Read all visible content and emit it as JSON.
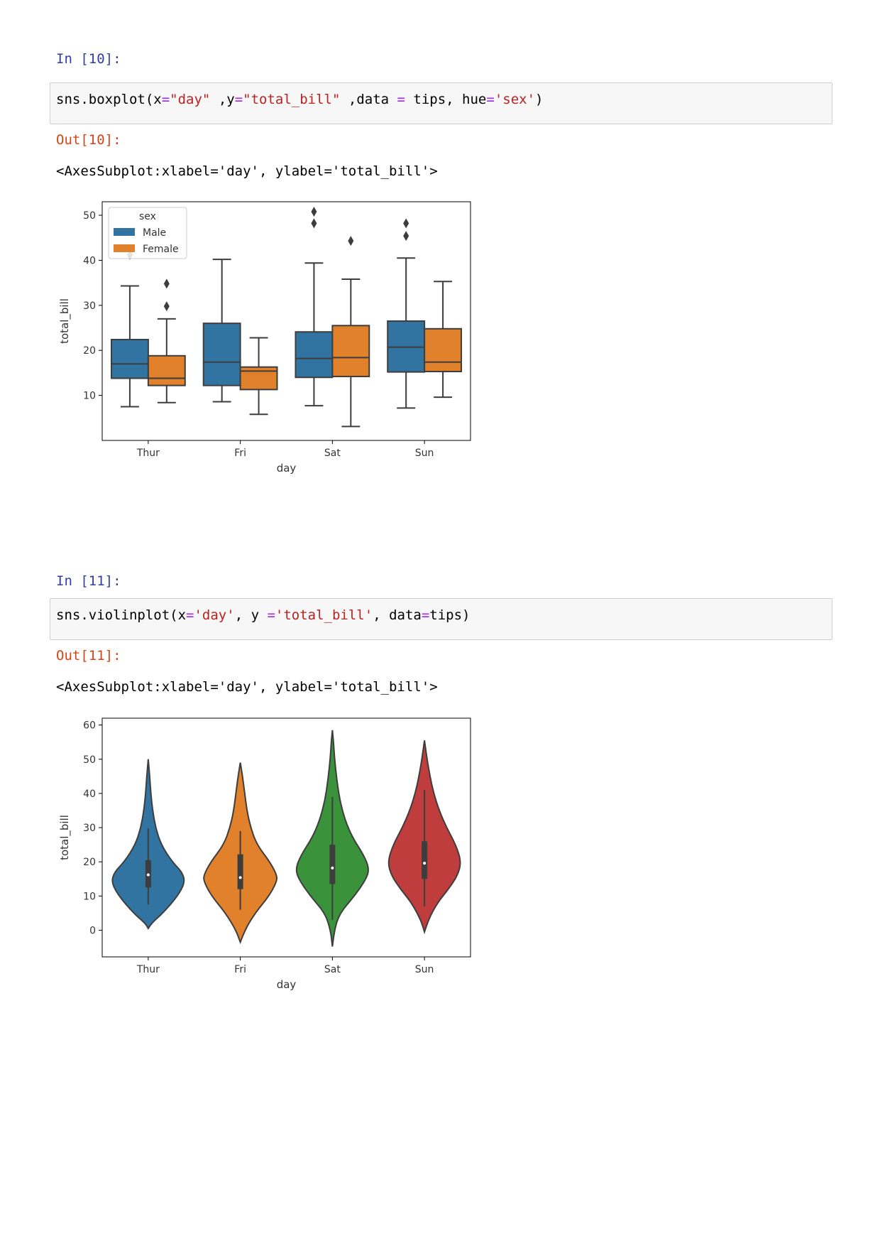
{
  "cells": [
    {
      "in_prompt": "In [10]:",
      "code": {
        "tokens": [
          {
            "t": "sns.boxplot(x",
            "k": "n"
          },
          {
            "t": "=",
            "k": "o"
          },
          {
            "t": "\"day\"",
            "k": "s"
          },
          {
            "t": " ,y",
            "k": "n"
          },
          {
            "t": "=",
            "k": "o"
          },
          {
            "t": "\"total_bill\"",
            "k": "s"
          },
          {
            "t": " ,data ",
            "k": "n"
          },
          {
            "t": "=",
            "k": "o"
          },
          {
            "t": " tips, hue",
            "k": "n"
          },
          {
            "t": "=",
            "k": "o"
          },
          {
            "t": "'sex'",
            "k": "s"
          },
          {
            "t": ")",
            "k": "n"
          }
        ]
      },
      "out_prompt": "Out[10]:",
      "repr": "<AxesSubplot:xlabel='day', ylabel='total_bill'>"
    },
    {
      "in_prompt": "In [11]:",
      "code": {
        "tokens": [
          {
            "t": "sns.violinplot(x",
            "k": "n"
          },
          {
            "t": "=",
            "k": "o"
          },
          {
            "t": "'day'",
            "k": "s"
          },
          {
            "t": ", y ",
            "k": "n"
          },
          {
            "t": "=",
            "k": "o"
          },
          {
            "t": "'total_bill'",
            "k": "s"
          },
          {
            "t": ", data",
            "k": "n"
          },
          {
            "t": "=",
            "k": "o"
          },
          {
            "t": "tips)",
            "k": "n"
          }
        ]
      },
      "out_prompt": "Out[11]:",
      "repr": "<AxesSubplot:xlabel='day', ylabel='total_bill'>"
    }
  ],
  "colors": {
    "male": "#3274a1",
    "female": "#e1812c",
    "thur": "#3274a1",
    "fri": "#e1812c",
    "sat": "#3a923a",
    "sun": "#c03d3e",
    "line": "#3d3d3d"
  },
  "chart_data": [
    {
      "type": "box",
      "xlabel": "day",
      "ylabel": "total_bill",
      "ylim": [
        0,
        53
      ],
      "yticks": [
        10,
        20,
        30,
        40,
        50
      ],
      "categories": [
        "Thur",
        "Fri",
        "Sat",
        "Sun"
      ],
      "legend": {
        "title": "sex",
        "placement": "top-left",
        "entries": [
          "Male",
          "Female"
        ]
      },
      "series": [
        {
          "name": "Male",
          "boxes": [
            {
              "low": 7.5,
              "q1": 13.8,
              "median": 17.0,
              "q3": 22.4,
              "high": 34.3,
              "outliers": [
                41.2
              ]
            },
            {
              "low": 8.6,
              "q1": 12.2,
              "median": 17.4,
              "q3": 26.0,
              "high": 40.2,
              "outliers": []
            },
            {
              "low": 7.7,
              "q1": 14.0,
              "median": 18.2,
              "q3": 24.1,
              "high": 39.4,
              "outliers": [
                48.2,
                50.8
              ]
            },
            {
              "low": 7.2,
              "q1": 15.2,
              "median": 20.7,
              "q3": 26.5,
              "high": 40.5,
              "outliers": [
                45.4,
                48.2
              ]
            }
          ]
        },
        {
          "name": "Female",
          "boxes": [
            {
              "low": 8.4,
              "q1": 12.2,
              "median": 13.8,
              "q3": 18.8,
              "high": 27.0,
              "outliers": [
                29.8,
                34.8
              ]
            },
            {
              "low": 5.8,
              "q1": 11.3,
              "median": 15.4,
              "q3": 16.3,
              "high": 22.8,
              "outliers": []
            },
            {
              "low": 3.1,
              "q1": 14.2,
              "median": 18.4,
              "q3": 25.5,
              "high": 35.8,
              "outliers": [
                44.3
              ]
            },
            {
              "low": 9.6,
              "q1": 15.3,
              "median": 17.4,
              "q3": 24.8,
              "high": 35.3,
              "outliers": []
            }
          ]
        }
      ]
    },
    {
      "type": "violin",
      "xlabel": "day",
      "ylabel": "total_bill",
      "ylim": [
        -7.8,
        62
      ],
      "yticks": [
        0,
        10,
        20,
        30,
        40,
        50,
        60
      ],
      "categories": [
        "Thur",
        "Fri",
        "Sat",
        "Sun"
      ],
      "violins": [
        {
          "min": 0.5,
          "max": 50.0,
          "profile": [
            [
              0.5,
              0.0
            ],
            [
              2,
              0.08
            ],
            [
              5,
              0.4
            ],
            [
              10,
              0.8
            ],
            [
              14,
              1.0
            ],
            [
              17,
              0.92
            ],
            [
              20,
              0.65
            ],
            [
              25,
              0.35
            ],
            [
              30,
              0.2
            ],
            [
              35,
              0.12
            ],
            [
              40,
              0.07
            ],
            [
              45,
              0.04
            ],
            [
              50,
              0.0
            ]
          ],
          "box": {
            "whisker_low": 7.5,
            "q1": 12.5,
            "median": 16.2,
            "q3": 20.5,
            "whisker_high": 29.8
          }
        },
        {
          "min": -3.5,
          "max": 49.0,
          "profile": [
            [
              -3.5,
              0.0
            ],
            [
              0,
              0.12
            ],
            [
              5,
              0.4
            ],
            [
              10,
              0.78
            ],
            [
              14,
              0.98
            ],
            [
              16,
              1.0
            ],
            [
              20,
              0.8
            ],
            [
              25,
              0.45
            ],
            [
              30,
              0.28
            ],
            [
              35,
              0.18
            ],
            [
              40,
              0.12
            ],
            [
              45,
              0.06
            ],
            [
              49,
              0.0
            ]
          ],
          "box": {
            "whisker_low": 6.0,
            "q1": 12.0,
            "median": 15.4,
            "q3": 22.2,
            "whisker_high": 29.0
          }
        },
        {
          "min": -4.8,
          "max": 58.5,
          "profile": [
            [
              -4.8,
              0.0
            ],
            [
              0,
              0.05
            ],
            [
              5,
              0.2
            ],
            [
              10,
              0.6
            ],
            [
              15,
              0.92
            ],
            [
              18,
              1.0
            ],
            [
              22,
              0.85
            ],
            [
              27,
              0.55
            ],
            [
              32,
              0.35
            ],
            [
              38,
              0.2
            ],
            [
              44,
              0.12
            ],
            [
              50,
              0.06
            ],
            [
              55,
              0.03
            ],
            [
              58.5,
              0.0
            ]
          ],
          "box": {
            "whisker_low": 3.0,
            "q1": 13.5,
            "median": 18.2,
            "q3": 25.0,
            "whisker_high": 39.0
          }
        },
        {
          "min": -0.5,
          "max": 55.5,
          "profile": [
            [
              -0.5,
              0.0
            ],
            [
              3,
              0.1
            ],
            [
              8,
              0.35
            ],
            [
              12,
              0.65
            ],
            [
              16,
              0.9
            ],
            [
              20,
              1.0
            ],
            [
              25,
              0.85
            ],
            [
              30,
              0.6
            ],
            [
              35,
              0.4
            ],
            [
              40,
              0.25
            ],
            [
              45,
              0.15
            ],
            [
              50,
              0.07
            ],
            [
              55.5,
              0.0
            ]
          ],
          "box": {
            "whisker_low": 7.0,
            "q1": 15.0,
            "median": 19.6,
            "q3": 26.0,
            "whisker_high": 41.0
          }
        }
      ]
    }
  ]
}
